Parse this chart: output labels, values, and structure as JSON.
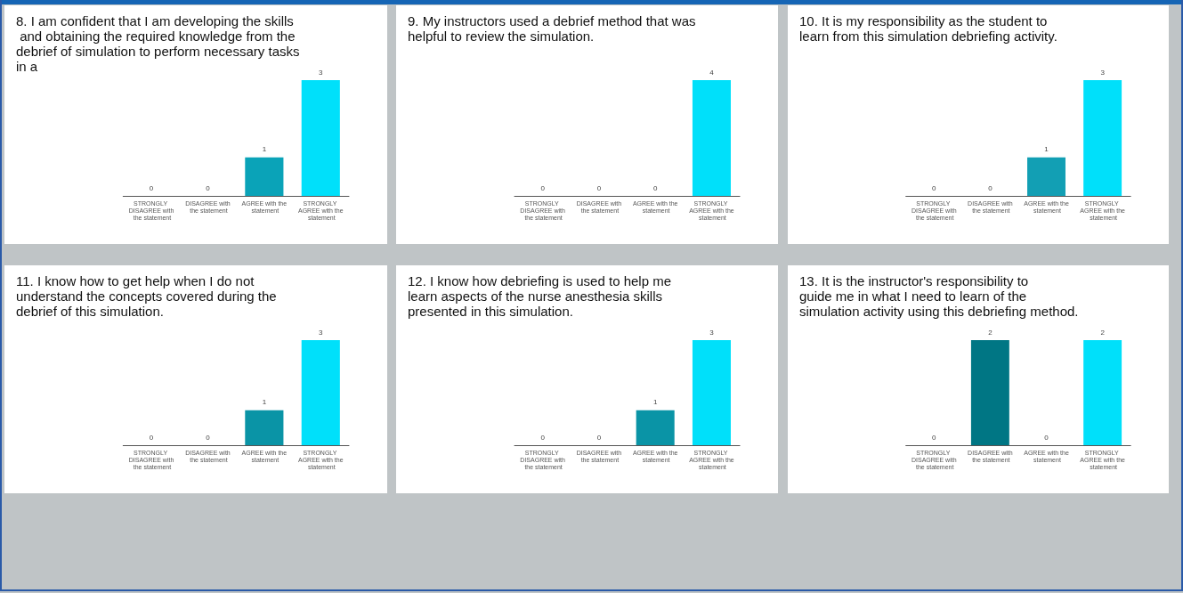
{
  "chart_data": [
    {
      "type": "bar",
      "title": "8. I am confident that I am developing the skills and obtaining the required knowledge from the debrief of simulation to perform necessary tasks in a",
      "categories": [
        "STRONGLY DISAGREE with the statement",
        "DISAGREE with the statement",
        "AGREE with the statement",
        "STRONGLY AGREE with the statement"
      ],
      "values": [
        0,
        0,
        1,
        3
      ],
      "colors": [
        "#006d7a",
        "#007684",
        "#0aa3b8",
        "#00e0fa"
      ],
      "data_labels": true,
      "grid": false
    },
    {
      "type": "bar",
      "title": "9. My instructors used a debrief method that was helpful to review the simulation.",
      "categories": [
        "STRONGLY DISAGREE with the statement",
        "DISAGREE with the statement",
        "AGREE with the statement",
        "STRONGLY AGREE with the statement"
      ],
      "values": [
        0,
        0,
        0,
        4
      ],
      "colors": [
        "#006d7a",
        "#007684",
        "#0aa3b8",
        "#00e0fa"
      ],
      "data_labels": true,
      "grid": false
    },
    {
      "type": "bar",
      "title": "10. It is my responsibility as the student to learn from this simulation debriefing activity.",
      "categories": [
        "STRONGLY DISAGREE with the statement",
        "DISAGREE with the statement",
        "AGREE with the statement",
        "STRONGLY AGREE with the statement"
      ],
      "values": [
        0,
        0,
        1,
        3
      ],
      "colors": [
        "#006d7a",
        "#007684",
        "#129fb4",
        "#00e0fa"
      ],
      "data_labels": true,
      "grid": false
    },
    {
      "type": "bar",
      "title": "11. I know how to get help when I do not understand the concepts covered during the debrief of this simulation.",
      "categories": [
        "STRONGLY DISAGREE with the statement",
        "DISAGREE with the statement",
        "AGREE with the statement",
        "STRONGLY AGREE with the statement"
      ],
      "values": [
        0,
        0,
        1,
        3
      ],
      "colors": [
        "#006d7a",
        "#007684",
        "#0a94a6",
        "#00e0fa"
      ],
      "data_labels": true,
      "grid": false
    },
    {
      "type": "bar",
      "title": "12. I know how debriefing is used to help me learn aspects of the nurse anesthesia skills presented in this simulation.",
      "categories": [
        "STRONGLY DISAGREE with the statement",
        "DISAGREE with the statement",
        "AGREE with the statement",
        "STRONGLY AGREE with the statement"
      ],
      "values": [
        0,
        0,
        1,
        3
      ],
      "colors": [
        "#006d7a",
        "#007684",
        "#0a94a6",
        "#00e0fa"
      ],
      "data_labels": true,
      "grid": false
    },
    {
      "type": "bar",
      "title": "13. It is the instructor's responsibility to guide me in what I need to learn of the simulation activity using this debriefing method.",
      "categories": [
        "STRONGLY DISAGREE with the statement",
        "DISAGREE with the statement",
        "AGREE with the statement",
        "STRONGLY AGREE with the statement"
      ],
      "values": [
        0,
        2,
        0,
        2
      ],
      "colors": [
        "#006d7a",
        "#007684",
        "#0aa3b8",
        "#00e0fa"
      ],
      "data_labels": true,
      "grid": false
    }
  ]
}
